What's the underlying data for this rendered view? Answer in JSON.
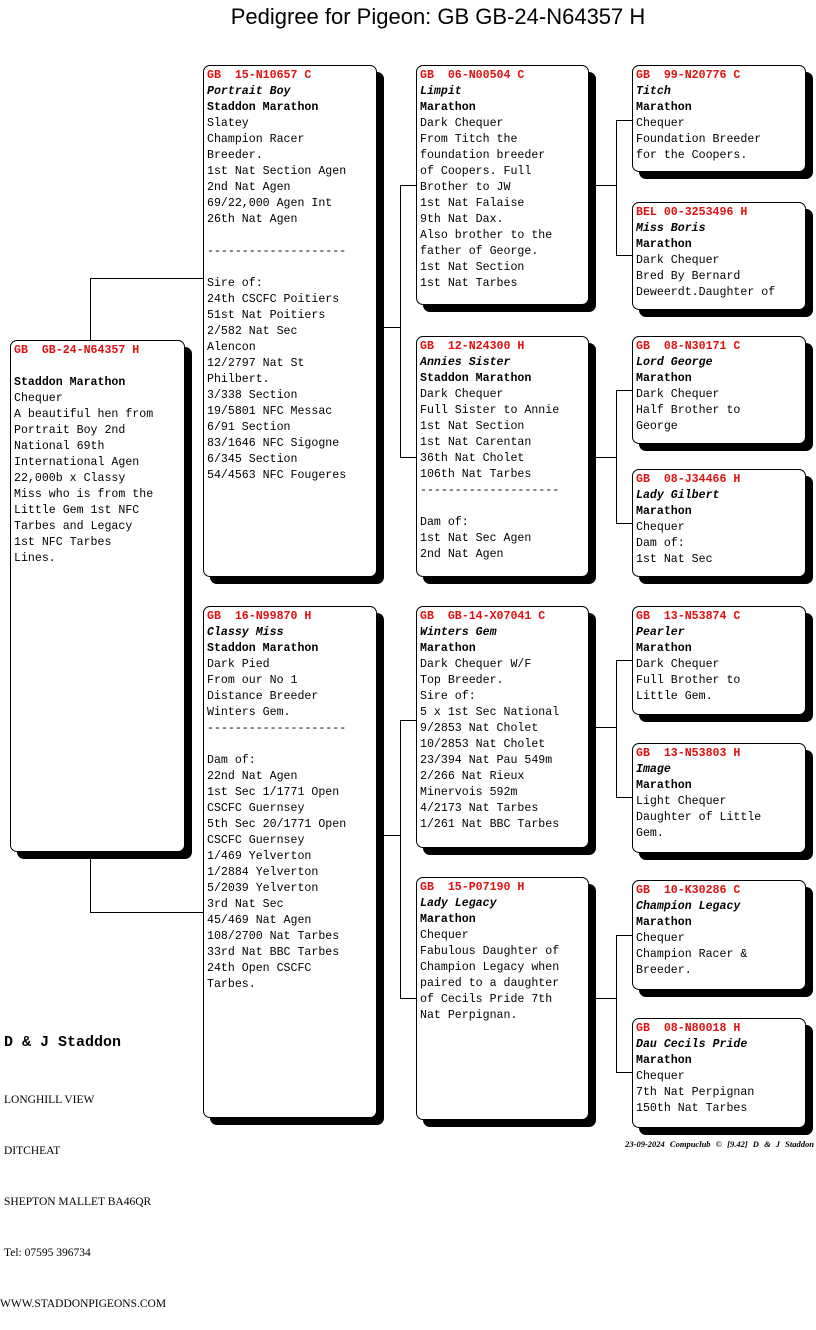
{
  "title": "Pedigree for Pigeon: GB  GB-24-N64357 H",
  "subject": {
    "ring": "GB  GB-24-N64357 H",
    "name": "",
    "strain": "Staddon Marathon",
    "lines": [
      "Chequer",
      "A beautiful hen from",
      "Portrait Boy 2nd",
      "National 69th",
      "International Agen",
      "22,000b x Classy",
      "Miss who is from the",
      "Little Gem 1st NFC",
      "Tarbes and Legacy",
      "1st NFC Tarbes",
      "Lines."
    ]
  },
  "birds": [
    {
      "ring": "GB  15-N10657 C",
      "name": "Portrait Boy",
      "strain": "Staddon Marathon",
      "lines": [
        "Slatey",
        "Champion Racer",
        "Breeder.",
        "1st Nat Section Agen",
        "2nd Nat Agen",
        "69/22,000 Agen Int",
        "26th Nat Agen",
        "",
        "--------------------",
        "",
        "Sire of:",
        "24th CSCFC Poitiers",
        "51st Nat Poitiers",
        "2/582 Nat Sec",
        "Alencon",
        "12/2797 Nat St",
        "Philbert.",
        "3/338 Section",
        "19/5801 NFC Messac",
        "6/91 Section",
        "83/1646 NFC Sigogne",
        "6/345 Section",
        "54/4563 NFC Fougeres"
      ]
    },
    {
      "ring": "GB  16-N99870 H",
      "name": "Classy Miss",
      "strain": "Staddon Marathon",
      "lines": [
        "Dark Pied",
        "From our No 1",
        "Distance Breeder",
        "Winters Gem.",
        "--------------------",
        "",
        "Dam of:",
        "22nd Nat Agen",
        "1st Sec 1/1771 Open",
        "CSCFC Guernsey",
        "5th Sec 20/1771 Open",
        "CSCFC Guernsey",
        "1/469 Yelverton",
        "1/2884 Yelverton",
        "5/2039 Yelverton",
        "3rd Nat Sec",
        "45/469 Nat Agen",
        "108/2700 Nat Tarbes",
        "33rd Nat BBC Tarbes",
        "24th Open CSCFC",
        "Tarbes."
      ]
    },
    {
      "ring": "GB  06-N00504 C",
      "name": "Limpit",
      "strain": "Marathon",
      "lines": [
        "Dark Chequer",
        "From Titch the",
        "foundation breeder",
        "of Coopers. Full",
        "Brother to JW",
        "1st Nat Falaise",
        "9th Nat Dax.",
        "Also brother to the",
        "father of George.",
        "1st Nat Section",
        "1st Nat Tarbes"
      ]
    },
    {
      "ring": "GB  12-N24300 H",
      "name": "Annies Sister",
      "strain": "Staddon Marathon",
      "lines": [
        "Dark Chequer",
        "Full Sister to Annie",
        "1st Nat Section",
        "1st Nat Carentan",
        "36th Nat Cholet",
        "106th Nat Tarbes",
        "--------------------",
        "",
        "Dam of:",
        "1st Nat Sec Agen",
        "2nd Nat Agen"
      ]
    },
    {
      "ring": "GB  GB-14-X07041 C",
      "name": "Winters Gem",
      "strain": "Marathon",
      "lines": [
        "Dark Chequer W/F",
        "Top Breeder.",
        "Sire of:",
        "5 x 1st Sec National",
        "9/2853 Nat Cholet",
        "10/2853 Nat Cholet",
        "23/394 Nat Pau 549m",
        "2/266 Nat Rieux",
        "Minervois 592m",
        "4/2173 Nat Tarbes",
        "1/261 Nat BBC Tarbes"
      ]
    },
    {
      "ring": "GB  15-P07190 H",
      "name": "Lady Legacy",
      "strain": "Marathon",
      "lines": [
        "Chequer",
        "Fabulous Daughter of",
        "Champion Legacy when",
        "paired to a daughter",
        "of Cecils Pride 7th",
        "Nat Perpignan."
      ]
    },
    {
      "ring": "GB  99-N20776 C",
      "name": "Titch",
      "strain": "Marathon",
      "lines": [
        "Chequer",
        "Foundation Breeder",
        "for the Coopers."
      ]
    },
    {
      "ring": "BEL 00-3253496 H",
      "name": "Miss Boris",
      "strain": "Marathon",
      "lines": [
        "Dark Chequer",
        "Bred By Bernard",
        "Deweerdt.Daughter of"
      ]
    },
    {
      "ring": "GB  08-N30171 C",
      "name": "Lord George",
      "strain": "Marathon",
      "lines": [
        "Dark Chequer",
        "Half Brother to",
        "George"
      ]
    },
    {
      "ring": "GB  08-J34466 H",
      "name": "Lady Gilbert",
      "strain": "Marathon",
      "lines": [
        "Chequer",
        "Dam of:",
        "1st Nat Sec"
      ]
    },
    {
      "ring": "GB  13-N53874 C",
      "name": "Pearler",
      "strain": "Marathon",
      "lines": [
        "Dark Chequer",
        "Full Brother to",
        "Little Gem."
      ]
    },
    {
      "ring": "GB  13-N53803 H",
      "name": "Image",
      "strain": "Marathon",
      "lines": [
        "Light Chequer",
        "Daughter of Little",
        "Gem."
      ]
    },
    {
      "ring": "GB  10-K30286 C",
      "name": "Champion Legacy",
      "strain": "Marathon",
      "lines": [
        "Chequer",
        "Champion Racer &",
        "Breeder."
      ]
    },
    {
      "ring": "GB  08-N80018 H",
      "name": "Dau Cecils Pride",
      "strain": "Marathon",
      "lines": [
        "Chequer",
        "7th Nat Perpignan",
        "150th Nat Tarbes"
      ]
    }
  ],
  "breeder": {
    "name": "D & J Staddon",
    "address": [
      "LONGHILL VIEW",
      "DITCHEAT",
      "SHEPTON MALLET BA46QR",
      "Tel: 07595 396734",
      "WWW.STADDONPIGEONS.COM"
    ]
  },
  "footer": "23-09-2024  Compuclub © [9.42]  D & J Staddon",
  "colors": {
    "ring": "#e01010"
  }
}
